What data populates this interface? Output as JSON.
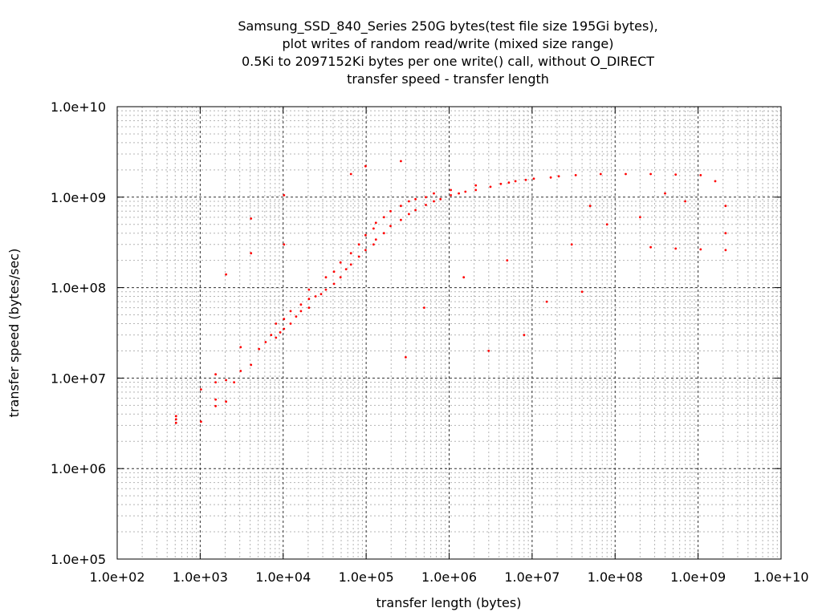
{
  "chart_data": {
    "type": "scatter",
    "title_lines": [
      "Samsung_SSD_840_Series 250G bytes(test file size 195Gi bytes),",
      "plot writes of random read/write (mixed size range)",
      "0.5Ki to 2097152Ki bytes per one write() call, without O_DIRECT",
      "transfer speed - transfer length"
    ],
    "xlabel": "transfer length (bytes)",
    "ylabel": "transfer speed (bytes/sec)",
    "x_scale": "log",
    "y_scale": "log",
    "xlim": [
      100,
      10000000000
    ],
    "ylim": [
      100000,
      10000000000
    ],
    "x_ticks": [
      {
        "value": 100,
        "label": "1.0e+02"
      },
      {
        "value": 1000,
        "label": "1.0e+03"
      },
      {
        "value": 10000,
        "label": "1.0e+04"
      },
      {
        "value": 100000,
        "label": "1.0e+05"
      },
      {
        "value": 1000000,
        "label": "1.0e+06"
      },
      {
        "value": 10000000,
        "label": "1.0e+07"
      },
      {
        "value": 100000000,
        "label": "1.0e+08"
      },
      {
        "value": 1000000000,
        "label": "1.0e+09"
      },
      {
        "value": 10000000000,
        "label": "1.0e+10"
      }
    ],
    "y_ticks": [
      {
        "value": 100000,
        "label": "1.0e+05"
      },
      {
        "value": 1000000,
        "label": "1.0e+06"
      },
      {
        "value": 10000000,
        "label": "1.0e+07"
      },
      {
        "value": 100000000,
        "label": "1.0e+08"
      },
      {
        "value": 1000000000,
        "label": "1.0e+09"
      },
      {
        "value": 10000000000,
        "label": "1.0e+10"
      }
    ],
    "grid": true,
    "legend": "none",
    "series": [
      {
        "color": "#ff0000",
        "points": [
          [
            512,
            3200000
          ],
          [
            512,
            3500000
          ],
          [
            512,
            3800000
          ],
          [
            1024,
            3300000
          ],
          [
            1024,
            7500000
          ],
          [
            1536,
            4900000
          ],
          [
            1536,
            5800000
          ],
          [
            1536,
            9000000
          ],
          [
            1536,
            11000000
          ],
          [
            2048,
            5500000
          ],
          [
            2048,
            9500000
          ],
          [
            2048,
            140000000
          ],
          [
            2560,
            9000000
          ],
          [
            3072,
            12000000
          ],
          [
            3072,
            22000000
          ],
          [
            4096,
            14000000
          ],
          [
            4096,
            240000000
          ],
          [
            4096,
            580000000
          ],
          [
            5120,
            21000000
          ],
          [
            6144,
            25000000
          ],
          [
            7168,
            30000000
          ],
          [
            8192,
            28000000
          ],
          [
            8192,
            40000000
          ],
          [
            9216,
            32000000
          ],
          [
            10240,
            35000000
          ],
          [
            10240,
            45000000
          ],
          [
            10240,
            300000000
          ],
          [
            10240,
            1050000000
          ],
          [
            12288,
            40000000
          ],
          [
            12288,
            55000000
          ],
          [
            14336,
            48000000
          ],
          [
            16384,
            55000000
          ],
          [
            16384,
            65000000
          ],
          [
            20480,
            60000000
          ],
          [
            20480,
            75000000
          ],
          [
            20480,
            95000000
          ],
          [
            24576,
            80000000
          ],
          [
            28672,
            85000000
          ],
          [
            32768,
            95000000
          ],
          [
            32768,
            130000000
          ],
          [
            40960,
            110000000
          ],
          [
            40960,
            150000000
          ],
          [
            49152,
            130000000
          ],
          [
            49152,
            190000000
          ],
          [
            57344,
            160000000
          ],
          [
            65536,
            180000000
          ],
          [
            65536,
            240000000
          ],
          [
            65536,
            1800000000
          ],
          [
            81920,
            220000000
          ],
          [
            81920,
            300000000
          ],
          [
            98304,
            260000000
          ],
          [
            98304,
            380000000
          ],
          [
            98304,
            2200000000
          ],
          [
            122880,
            300000000
          ],
          [
            122880,
            450000000
          ],
          [
            131072,
            340000000
          ],
          [
            131072,
            520000000
          ],
          [
            163840,
            400000000
          ],
          [
            163840,
            600000000
          ],
          [
            196608,
            480000000
          ],
          [
            196608,
            700000000
          ],
          [
            262144,
            560000000
          ],
          [
            262144,
            800000000
          ],
          [
            262144,
            2500000000
          ],
          [
            327680,
            650000000
          ],
          [
            327680,
            900000000
          ],
          [
            393216,
            720000000
          ],
          [
            393216,
            950000000
          ],
          [
            524288,
            820000000
          ],
          [
            524288,
            1000000000
          ],
          [
            655360,
            900000000
          ],
          [
            655360,
            1100000000
          ],
          [
            786432,
            950000000
          ],
          [
            1048576,
            1050000000
          ],
          [
            1048576,
            1200000000
          ],
          [
            1310720,
            1100000000
          ],
          [
            1572864,
            1150000000
          ],
          [
            2097152,
            1200000000
          ],
          [
            2097152,
            1350000000
          ],
          [
            3145728,
            1300000000
          ],
          [
            4194304,
            1400000000
          ],
          [
            5242880,
            1450000000
          ],
          [
            6291456,
            1500000000
          ],
          [
            8388608,
            1550000000
          ],
          [
            10485760,
            1600000000
          ],
          [
            16777216,
            1650000000
          ],
          [
            20971520,
            1700000000
          ],
          [
            33554432,
            1750000000
          ],
          [
            67108864,
            1800000000
          ],
          [
            134217728,
            1800000000
          ],
          [
            268435456,
            1800000000
          ],
          [
            536870912,
            1780000000
          ],
          [
            1073741824,
            1750000000
          ],
          [
            1610612736,
            1500000000
          ],
          [
            2147483648,
            800000000
          ],
          [
            268435456,
            280000000
          ],
          [
            536870912,
            270000000
          ],
          [
            1073741824,
            265000000
          ],
          [
            2147483648,
            260000000
          ],
          [
            2147483648,
            400000000
          ],
          [
            50000000,
            800000000
          ],
          [
            80000000,
            500000000
          ],
          [
            30000000,
            300000000
          ],
          [
            5000000,
            200000000
          ],
          [
            15000000,
            70000000
          ],
          [
            40000000,
            90000000
          ],
          [
            8000000,
            30000000
          ],
          [
            3000000,
            20000000
          ],
          [
            500000,
            60000000
          ],
          [
            300000,
            17000000
          ],
          [
            1500000,
            130000000
          ],
          [
            700000000,
            900000000
          ],
          [
            400000000,
            1100000000
          ],
          [
            200000000,
            600000000
          ]
        ]
      }
    ]
  }
}
